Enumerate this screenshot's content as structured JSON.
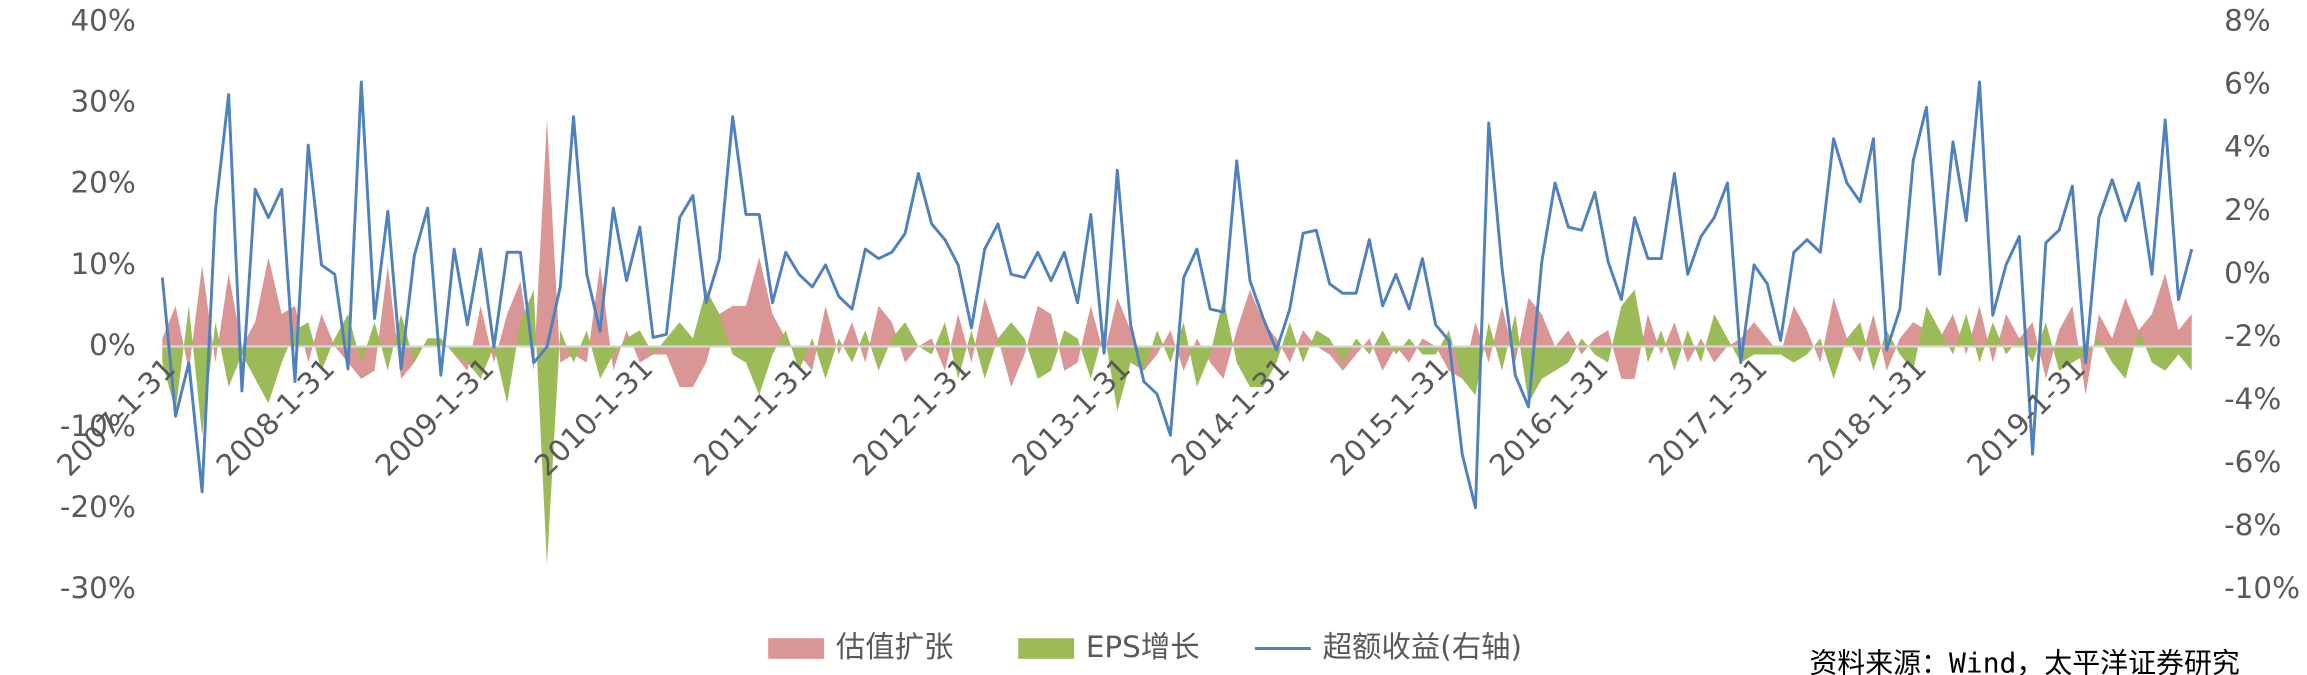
{
  "chart_data": {
    "type": "area-line",
    "source": "资料来源：Wind，太平洋证券研究",
    "categories": [
      "2007-1-31",
      null,
      null,
      null,
      null,
      null,
      null,
      null,
      null,
      null,
      null,
      null,
      "2008-1-31",
      null,
      null,
      null,
      null,
      null,
      null,
      null,
      null,
      null,
      null,
      null,
      "2009-1-31",
      null,
      null,
      null,
      null,
      null,
      null,
      null,
      null,
      null,
      null,
      null,
      "2010-1-31",
      null,
      null,
      null,
      null,
      null,
      null,
      null,
      null,
      null,
      null,
      null,
      "2011-1-31",
      null,
      null,
      null,
      null,
      null,
      null,
      null,
      null,
      null,
      null,
      null,
      "2012-1-31",
      null,
      null,
      null,
      null,
      null,
      null,
      null,
      null,
      null,
      null,
      null,
      "2013-1-31",
      null,
      null,
      null,
      null,
      null,
      null,
      null,
      null,
      null,
      null,
      null,
      "2014-1-31",
      null,
      null,
      null,
      null,
      null,
      null,
      null,
      null,
      null,
      null,
      null,
      "2015-1-31",
      null,
      null,
      null,
      null,
      null,
      null,
      null,
      null,
      null,
      null,
      null,
      "2016-1-31",
      null,
      null,
      null,
      null,
      null,
      null,
      null,
      null,
      null,
      null,
      null,
      "2017-1-31",
      null,
      null,
      null,
      null,
      null,
      null,
      null,
      null,
      null,
      null,
      null,
      "2018-1-31",
      null,
      null,
      null,
      null,
      null,
      null,
      null,
      null,
      null,
      null,
      null,
      "2019-1-31",
      null,
      null,
      null,
      null,
      null,
      null,
      null,
      null,
      null
    ],
    "series": [
      {
        "name": "估值扩张",
        "color": "#da9694",
        "kind": "area",
        "values": [
          1,
          5,
          -3,
          10,
          -2,
          9,
          0,
          3,
          11,
          4,
          5,
          -2,
          4,
          0,
          -2,
          -4,
          -3,
          10,
          -4,
          -2,
          1,
          1,
          -1,
          -3,
          5,
          -2,
          4,
          8,
          -3,
          28,
          -2,
          -1,
          -2,
          10,
          -3,
          2,
          -2,
          -1,
          -1,
          -5,
          -5,
          -2,
          4,
          5,
          5,
          11,
          4,
          1,
          -1,
          -3,
          5,
          -1,
          3,
          -2,
          5,
          3,
          -2,
          0,
          1,
          -3,
          4,
          -2,
          6,
          1,
          -5,
          -1,
          5,
          4,
          -3,
          -2,
          5,
          -1,
          6,
          2,
          -3,
          -1,
          2,
          -3,
          1,
          -2,
          -4,
          2,
          7,
          3,
          1,
          -2,
          2,
          0,
          -1,
          -3,
          -1,
          1,
          -3,
          0,
          -2,
          1,
          0,
          -3,
          -4,
          3,
          -2,
          5,
          -2,
          6,
          4,
          0,
          2,
          -1,
          1,
          2,
          -4,
          -4,
          4,
          -1,
          3,
          -2,
          1,
          -2,
          0,
          1,
          3,
          1,
          -1,
          5,
          2,
          -2,
          6,
          1,
          -2,
          4,
          -3,
          1,
          3,
          2,
          1,
          4,
          -1,
          5,
          -2,
          4,
          1,
          3,
          -4,
          2,
          5,
          -6,
          4,
          1,
          6,
          2,
          4,
          9,
          2,
          4
        ]
      },
      {
        "name": "EPS增长",
        "color": "#9bbb59",
        "kind": "area",
        "values": [
          -2,
          -8,
          5,
          -11,
          3,
          -5,
          -1,
          -4,
          -7,
          -2,
          2,
          3,
          -3,
          1,
          4,
          -2,
          3,
          -3,
          4,
          -2,
          1,
          1,
          -1,
          -2,
          -4,
          0,
          -7,
          3,
          7,
          -27,
          2,
          -2,
          2,
          -4,
          -1,
          1,
          2,
          -1,
          1,
          3,
          1,
          7,
          4,
          -1,
          -2,
          -6,
          -1,
          2,
          -3,
          1,
          -4,
          1,
          -2,
          2,
          -3,
          1,
          3,
          0,
          -1,
          3,
          -4,
          2,
          -4,
          1,
          3,
          1,
          -4,
          -3,
          2,
          1,
          -4,
          2,
          -8,
          -2,
          -3,
          2,
          -2,
          3,
          -5,
          -1,
          6,
          -2,
          -5,
          -5,
          -2,
          3,
          -2,
          2,
          1,
          -2,
          1,
          -1,
          2,
          -1,
          1,
          -1,
          -1,
          2,
          -4,
          -6,
          3,
          -3,
          4,
          -7,
          -4,
          -3,
          -2,
          1,
          -1,
          -2,
          5,
          7,
          -2,
          2,
          -3,
          2,
          -2,
          4,
          1,
          -2,
          -1,
          -1,
          -1,
          -2,
          -1,
          1,
          -4,
          1,
          3,
          -3,
          2,
          -1,
          -3,
          5,
          2,
          -1,
          4,
          -2,
          3,
          -1,
          1,
          -2,
          3,
          -3,
          -2,
          -1,
          1,
          -2,
          -4,
          2,
          -2,
          -3,
          -1,
          -3
        ]
      },
      {
        "name": "超额收益(右轴)",
        "color": "#4f81bd",
        "kind": "line",
        "axis": "y2",
        "values": [
          -0.1,
          -4.5,
          -2.8,
          -6.9,
          2.0,
          5.7,
          -3.7,
          2.7,
          1.8,
          2.7,
          -3.4,
          4.1,
          0.3,
          0,
          -3.0,
          6.1,
          -1.4,
          2.0,
          -3.0,
          0.6,
          2.1,
          -3.2,
          0.8,
          -1.6,
          0.8,
          -2.3,
          0.7,
          0.7,
          -2.8,
          -2.3,
          -0.4,
          5.0,
          0,
          -1.8,
          2.1,
          -0.2,
          1.5,
          -2.0,
          -1.9,
          1.8,
          2.5,
          -0.9,
          0.5,
          5.0,
          1.9,
          1.9,
          -0.9,
          0.7,
          0,
          -0.4,
          0.3,
          -0.7,
          -1.1,
          0.8,
          0.5,
          0.7,
          1.3,
          3.2,
          1.6,
          1.1,
          0.3,
          -1.7,
          0.8,
          1.6,
          0,
          -0.1,
          0.7,
          -0.2,
          0.7,
          -0.9,
          1.9,
          -2.5,
          3.3,
          -1.6,
          -3.4,
          -3.8,
          -5.1,
          -0.1,
          0.8,
          -1.1,
          -1.2,
          3.6,
          -0.2,
          -1.4,
          -2.4,
          -1.1,
          1.3,
          1.4,
          -0.3,
          -0.6,
          -0.6,
          1.1,
          -1.0,
          0,
          -1.1,
          0.5,
          -1.6,
          -2.1,
          -5.7,
          -7.4,
          4.8,
          0.2,
          -3.2,
          -4.2,
          0.4,
          2.9,
          1.5,
          1.4,
          2.6,
          0.4,
          -0.8,
          1.8,
          0.5,
          0.5,
          3.2,
          0,
          1.2,
          1.8,
          2.9,
          -2.8,
          0.3,
          -0.3,
          -2.1,
          0.7,
          1.1,
          0.7,
          4.3,
          2.9,
          2.3,
          4.3,
          -2.4,
          -1.1,
          3.6,
          5.3,
          0,
          4.2,
          1.7,
          6.1,
          -1.3,
          0.3,
          1.2,
          -5.7,
          1.0,
          1.4,
          2.8,
          -2.8,
          1.8,
          3.0,
          1.7,
          2.9,
          0,
          4.9,
          -0.8,
          0.8
        ]
      }
    ],
    "ylim": [
      -30,
      40
    ],
    "yticks": [
      {
        "value": 40,
        "label": "40%"
      },
      {
        "value": 30,
        "label": "30%"
      },
      {
        "value": 20,
        "label": "20%"
      },
      {
        "value": 10,
        "label": "10%"
      },
      {
        "value": 0,
        "label": "0%"
      },
      {
        "value": -10,
        "label": "-10%"
      },
      {
        "value": -20,
        "label": "-20%"
      },
      {
        "value": -30,
        "label": "-30%"
      }
    ],
    "y2lim": [
      -10,
      8
    ],
    "y2ticks": [
      {
        "value": 8,
        "label": "8%"
      },
      {
        "value": 6,
        "label": "6%"
      },
      {
        "value": 4,
        "label": "4%"
      },
      {
        "value": 2,
        "label": "2%"
      },
      {
        "value": 0,
        "label": "0%"
      },
      {
        "value": -2,
        "label": "-2%"
      },
      {
        "value": -4,
        "label": "-4%"
      },
      {
        "value": -6,
        "label": "-6%"
      },
      {
        "value": -8,
        "label": "-8%"
      },
      {
        "value": -10,
        "label": "-10%"
      }
    ],
    "grid": false,
    "legend": "bottom"
  }
}
